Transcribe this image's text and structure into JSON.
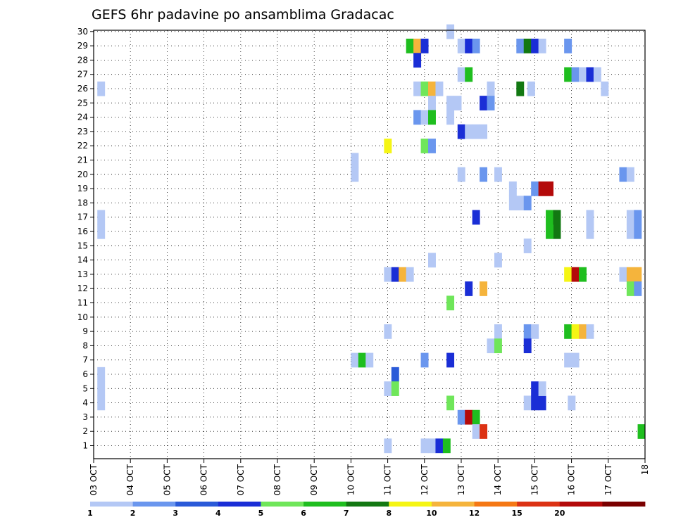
{
  "chart_data": {
    "type": "heatmap",
    "title": "GEFS 6hr padavine po ansamblima Gradacac",
    "x_categories": [
      "03 OCT",
      "04 OCT",
      "05 OCT",
      "06 OCT",
      "07 OCT",
      "08 OCT",
      "09 OCT",
      "10 OCT",
      "11 OCT",
      "12 OCT",
      "13 OCT",
      "14 OCT",
      "15 OCT",
      "16 OCT",
      "17 OCT",
      "18"
    ],
    "y_categories": [
      "1",
      "2",
      "3",
      "4",
      "5",
      "6",
      "7",
      "8",
      "9",
      "10",
      "11",
      "12",
      "13",
      "14",
      "15",
      "16",
      "17",
      "18",
      "19",
      "20",
      "21",
      "22",
      "23",
      "24",
      "25",
      "26",
      "27",
      "28",
      "29",
      "30"
    ],
    "ylim": [
      1,
      30
    ],
    "grid": true,
    "legend": {
      "placement": "bottom",
      "colors": [
        "#b4c8f5",
        "#6a96ee",
        "#2a5ad8",
        "#1a2ed6",
        "#6fe65a",
        "#1fbe1f",
        "#127812",
        "#f5f514",
        "#f5b43c",
        "#f57814",
        "#dc3214",
        "#b40a0a",
        "#7a0000"
      ],
      "labels": [
        "1",
        "2",
        "3",
        "4",
        "5",
        "6",
        "7",
        "8",
        "10",
        "12",
        "15",
        "20"
      ]
    },
    "cells": [
      {
        "x": 0.1,
        "y": 26,
        "c": 0
      },
      {
        "x": 0.1,
        "y": 17,
        "c": 0
      },
      {
        "x": 0.1,
        "y": 16,
        "c": 0
      },
      {
        "x": 0.1,
        "y": 6,
        "c": 0
      },
      {
        "x": 0.1,
        "y": 5,
        "c": 0
      },
      {
        "x": 0.1,
        "y": 4,
        "c": 0
      },
      {
        "x": 7.0,
        "y": 21,
        "c": 0
      },
      {
        "x": 7.0,
        "y": 20,
        "c": 0
      },
      {
        "x": 7.0,
        "y": 7,
        "c": 0
      },
      {
        "x": 7.2,
        "y": 7,
        "c": 5
      },
      {
        "x": 7.4,
        "y": 7,
        "c": 0
      },
      {
        "x": 7.9,
        "y": 22,
        "c": 7
      },
      {
        "x": 7.9,
        "y": 13,
        "c": 0
      },
      {
        "x": 8.1,
        "y": 13,
        "c": 3
      },
      {
        "x": 8.3,
        "y": 13,
        "c": 8
      },
      {
        "x": 8.5,
        "y": 13,
        "c": 0
      },
      {
        "x": 7.9,
        "y": 9,
        "c": 0
      },
      {
        "x": 8.1,
        "y": 6,
        "c": 2
      },
      {
        "x": 7.9,
        "y": 5,
        "c": 0
      },
      {
        "x": 8.1,
        "y": 5,
        "c": 4
      },
      {
        "x": 7.9,
        "y": 1,
        "c": 0
      },
      {
        "x": 8.5,
        "y": 29,
        "c": 5
      },
      {
        "x": 8.7,
        "y": 29,
        "c": 8
      },
      {
        "x": 8.9,
        "y": 29,
        "c": 3
      },
      {
        "x": 8.7,
        "y": 28,
        "c": 3
      },
      {
        "x": 8.7,
        "y": 26,
        "c": 0
      },
      {
        "x": 8.9,
        "y": 26,
        "c": 4
      },
      {
        "x": 9.1,
        "y": 26,
        "c": 8
      },
      {
        "x": 9.3,
        "y": 26,
        "c": 0
      },
      {
        "x": 9.1,
        "y": 25,
        "c": 0
      },
      {
        "x": 8.7,
        "y": 24,
        "c": 1
      },
      {
        "x": 8.9,
        "y": 24,
        "c": 0
      },
      {
        "x": 9.1,
        "y": 24,
        "c": 5
      },
      {
        "x": 8.9,
        "y": 22,
        "c": 4
      },
      {
        "x": 9.1,
        "y": 22,
        "c": 1
      },
      {
        "x": 9.1,
        "y": 14,
        "c": 0
      },
      {
        "x": 8.9,
        "y": 7,
        "c": 1
      },
      {
        "x": 8.9,
        "y": 1,
        "c": 0
      },
      {
        "x": 9.1,
        "y": 1,
        "c": 0
      },
      {
        "x": 9.3,
        "y": 1,
        "c": 3
      },
      {
        "x": 9.5,
        "y": 1,
        "c": 5
      },
      {
        "x": 9.6,
        "y": 30,
        "c": 0
      },
      {
        "x": 9.9,
        "y": 29,
        "c": 0
      },
      {
        "x": 10.1,
        "y": 29,
        "c": 3
      },
      {
        "x": 10.3,
        "y": 29,
        "c": 1
      },
      {
        "x": 9.9,
        "y": 27,
        "c": 0
      },
      {
        "x": 10.1,
        "y": 27,
        "c": 5
      },
      {
        "x": 9.6,
        "y": 25,
        "c": 0
      },
      {
        "x": 9.8,
        "y": 25,
        "c": 0
      },
      {
        "x": 9.6,
        "y": 24,
        "c": 0
      },
      {
        "x": 9.9,
        "y": 23,
        "c": 3
      },
      {
        "x": 10.1,
        "y": 23,
        "c": 0
      },
      {
        "x": 10.3,
        "y": 23,
        "c": 0
      },
      {
        "x": 10.5,
        "y": 23,
        "c": 0
      },
      {
        "x": 9.9,
        "y": 20,
        "c": 0
      },
      {
        "x": 10.1,
        "y": 12,
        "c": 3
      },
      {
        "x": 9.6,
        "y": 11,
        "c": 4
      },
      {
        "x": 9.6,
        "y": 7,
        "c": 3
      },
      {
        "x": 9.6,
        "y": 4,
        "c": 4
      },
      {
        "x": 9.9,
        "y": 3,
        "c": 1
      },
      {
        "x": 10.1,
        "y": 3,
        "c": 11
      },
      {
        "x": 10.3,
        "y": 3,
        "c": 5
      },
      {
        "x": 10.3,
        "y": 2,
        "c": 0
      },
      {
        "x": 10.5,
        "y": 2,
        "c": 10
      },
      {
        "x": 10.7,
        "y": 26,
        "c": 0
      },
      {
        "x": 10.5,
        "y": 25,
        "c": 3
      },
      {
        "x": 10.7,
        "y": 25,
        "c": 1
      },
      {
        "x": 10.5,
        "y": 20,
        "c": 1
      },
      {
        "x": 10.3,
        "y": 17,
        "c": 3
      },
      {
        "x": 10.5,
        "y": 12,
        "c": 8
      },
      {
        "x": 10.9,
        "y": 20,
        "c": 0
      },
      {
        "x": 10.9,
        "y": 14,
        "c": 0
      },
      {
        "x": 10.9,
        "y": 9,
        "c": 0
      },
      {
        "x": 10.7,
        "y": 8,
        "c": 0
      },
      {
        "x": 10.9,
        "y": 8,
        "c": 4
      },
      {
        "x": 11.5,
        "y": 29,
        "c": 1
      },
      {
        "x": 11.7,
        "y": 29,
        "c": 6
      },
      {
        "x": 11.9,
        "y": 29,
        "c": 3
      },
      {
        "x": 12.1,
        "y": 29,
        "c": 0
      },
      {
        "x": 11.5,
        "y": 26,
        "c": 6
      },
      {
        "x": 11.8,
        "y": 26,
        "c": 0
      },
      {
        "x": 11.5,
        "y": 18,
        "c": 0
      },
      {
        "x": 11.3,
        "y": 18,
        "c": 0
      },
      {
        "x": 11.7,
        "y": 18,
        "c": 1
      },
      {
        "x": 11.3,
        "y": 19,
        "c": 0
      },
      {
        "x": 11.9,
        "y": 19,
        "c": 1
      },
      {
        "x": 12.1,
        "y": 19,
        "c": 11
      },
      {
        "x": 12.3,
        "y": 19,
        "c": 11
      },
      {
        "x": 11.7,
        "y": 15,
        "c": 0
      },
      {
        "x": 11.7,
        "y": 9,
        "c": 1
      },
      {
        "x": 11.9,
        "y": 9,
        "c": 0
      },
      {
        "x": 11.7,
        "y": 8,
        "c": 3
      },
      {
        "x": 11.7,
        "y": 4,
        "c": 0
      },
      {
        "x": 11.9,
        "y": 4,
        "c": 3
      },
      {
        "x": 12.1,
        "y": 4,
        "c": 3
      },
      {
        "x": 11.9,
        "y": 5,
        "c": 3
      },
      {
        "x": 12.1,
        "y": 5,
        "c": 0
      },
      {
        "x": 12.3,
        "y": 17,
        "c": 5
      },
      {
        "x": 12.5,
        "y": 16,
        "c": 6
      },
      {
        "x": 12.3,
        "y": 16,
        "c": 5
      },
      {
        "x": 12.5,
        "y": 17,
        "c": 6
      },
      {
        "x": 12.8,
        "y": 29,
        "c": 1
      },
      {
        "x": 12.8,
        "y": 27,
        "c": 5
      },
      {
        "x": 13.0,
        "y": 27,
        "c": 1
      },
      {
        "x": 13.2,
        "y": 27,
        "c": 0
      },
      {
        "x": 13.4,
        "y": 27,
        "c": 3
      },
      {
        "x": 13.6,
        "y": 27,
        "c": 0
      },
      {
        "x": 13.8,
        "y": 26,
        "c": 0
      },
      {
        "x": 12.8,
        "y": 13,
        "c": 7
      },
      {
        "x": 13.0,
        "y": 13,
        "c": 11
      },
      {
        "x": 13.2,
        "y": 13,
        "c": 5
      },
      {
        "x": 12.8,
        "y": 9,
        "c": 5
      },
      {
        "x": 13.0,
        "y": 9,
        "c": 7
      },
      {
        "x": 13.2,
        "y": 9,
        "c": 8
      },
      {
        "x": 13.4,
        "y": 9,
        "c": 0
      },
      {
        "x": 12.8,
        "y": 7,
        "c": 0
      },
      {
        "x": 13.0,
        "y": 7,
        "c": 0
      },
      {
        "x": 12.9,
        "y": 4,
        "c": 0
      },
      {
        "x": 13.4,
        "y": 17,
        "c": 0
      },
      {
        "x": 13.4,
        "y": 16,
        "c": 0
      },
      {
        "x": 14.3,
        "y": 20,
        "c": 1
      },
      {
        "x": 14.5,
        "y": 20,
        "c": 0
      },
      {
        "x": 14.5,
        "y": 17,
        "c": 0
      },
      {
        "x": 14.7,
        "y": 17,
        "c": 1
      },
      {
        "x": 14.5,
        "y": 16,
        "c": 0
      },
      {
        "x": 14.7,
        "y": 16,
        "c": 1
      },
      {
        "x": 14.3,
        "y": 13,
        "c": 0
      },
      {
        "x": 14.5,
        "y": 13,
        "c": 8
      },
      {
        "x": 14.7,
        "y": 13,
        "c": 8
      },
      {
        "x": 14.5,
        "y": 12,
        "c": 4
      },
      {
        "x": 14.7,
        "y": 12,
        "c": 1
      },
      {
        "x": 14.8,
        "y": 2,
        "c": 5
      }
    ]
  }
}
